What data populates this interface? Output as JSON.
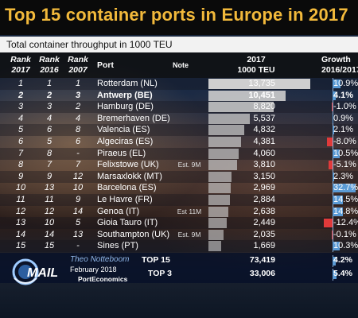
{
  "title": "Top 15 container ports in Europe in 2017",
  "subtitle": "Total container throughput in 1000 TEU",
  "headers": {
    "rank2017": [
      "Rank",
      "2017"
    ],
    "rank2016": [
      "Rank",
      "2016"
    ],
    "rank2007": [
      "Rank",
      "2007"
    ],
    "port": "Port",
    "note": "Note",
    "teu": [
      "2017",
      "1000 TEU"
    ],
    "growth": [
      "Growth",
      "2016/2017"
    ]
  },
  "colors": {
    "title": "#f2b93b",
    "growth_positive": "#5b9bd5",
    "growth_negative": "#e03a3a",
    "value_bar": "#cfcfcf"
  },
  "chart_data": {
    "type": "table",
    "title": "Top 15 container ports in Europe in 2017",
    "subtitle": "Total container throughput in 1000 TEU",
    "rows": [
      {
        "rank2017": "1",
        "rank2016": "1",
        "rank2007": "1",
        "port": "Rotterdam (NL)",
        "note": "",
        "teu": 13735,
        "teu_label": "13,735",
        "growth": 10.9,
        "growth_label": "10.9%",
        "bold": false
      },
      {
        "rank2017": "2",
        "rank2016": "2",
        "rank2007": "3",
        "port": "Antwerp (BE)",
        "note": "",
        "teu": 10451,
        "teu_label": "10,451",
        "growth": 4.1,
        "growth_label": "4.1%",
        "bold": true
      },
      {
        "rank2017": "3",
        "rank2016": "3",
        "rank2007": "2",
        "port": "Hamburg (DE)",
        "note": "",
        "teu": 8820,
        "teu_label": "8,820",
        "growth": -1.0,
        "growth_label": "-1.0%",
        "bold": false
      },
      {
        "rank2017": "4",
        "rank2016": "4",
        "rank2007": "4",
        "port": "Bremerhaven (DE)",
        "note": "",
        "teu": 5537,
        "teu_label": "5,537",
        "growth": 0.9,
        "growth_label": "0.9%",
        "bold": false
      },
      {
        "rank2017": "5",
        "rank2016": "6",
        "rank2007": "8",
        "port": "Valencia (ES)",
        "note": "",
        "teu": 4832,
        "teu_label": "4,832",
        "growth": 2.1,
        "growth_label": "2.1%",
        "bold": false
      },
      {
        "rank2017": "6",
        "rank2016": "5",
        "rank2007": "6",
        "port": "Algeciras (ES)",
        "note": "",
        "teu": 4381,
        "teu_label": "4,381",
        "growth": -8.0,
        "growth_label": "-8.0%",
        "bold": false
      },
      {
        "rank2017": "7",
        "rank2016": "8",
        "rank2007": "-",
        "port": "Piraeus (EL)",
        "note": "",
        "teu": 4060,
        "teu_label": "4,060",
        "growth": 10.5,
        "growth_label": "10.5%",
        "bold": false
      },
      {
        "rank2017": "8",
        "rank2016": "7",
        "rank2007": "7",
        "port": "Felixstowe (UK)",
        "note": "Est. 9M",
        "teu": 3810,
        "teu_label": "3,810",
        "growth": -5.1,
        "growth_label": "-5.1%",
        "bold": false
      },
      {
        "rank2017": "9",
        "rank2016": "9",
        "rank2007": "12",
        "port": "Marsaxlokk (MT)",
        "note": "",
        "teu": 3150,
        "teu_label": "3,150",
        "growth": 2.3,
        "growth_label": "2.3%",
        "bold": false
      },
      {
        "rank2017": "10",
        "rank2016": "13",
        "rank2007": "10",
        "port": "Barcelona (ES)",
        "note": "",
        "teu": 2969,
        "teu_label": "2,969",
        "growth": 32.7,
        "growth_label": "32.7%",
        "bold": false
      },
      {
        "rank2017": "11",
        "rank2016": "11",
        "rank2007": "9",
        "port": "Le Havre (FR)",
        "note": "",
        "teu": 2884,
        "teu_label": "2,884",
        "growth": 14.5,
        "growth_label": "14.5%",
        "bold": false
      },
      {
        "rank2017": "12",
        "rank2016": "12",
        "rank2007": "14",
        "port": "Genoa (IT)",
        "note": "Est 11M",
        "teu": 2638,
        "teu_label": "2,638",
        "growth": 14.8,
        "growth_label": "14.8%",
        "bold": false
      },
      {
        "rank2017": "13",
        "rank2016": "10",
        "rank2007": "5",
        "port": "Gioia Tauro (IT)",
        "note": "",
        "teu": 2449,
        "teu_label": "2,449",
        "growth": -12.4,
        "growth_label": "-12.4%",
        "bold": false
      },
      {
        "rank2017": "14",
        "rank2016": "14",
        "rank2007": "13",
        "port": "Southampton (UK)",
        "note": "Est. 9M",
        "teu": 2035,
        "teu_label": "2,035",
        "growth": -0.1,
        "growth_label": "-0.1%",
        "bold": false
      },
      {
        "rank2017": "15",
        "rank2016": "15",
        "rank2007": "-",
        "port": "Sines (PT)",
        "note": "",
        "teu": 1669,
        "teu_label": "1,669",
        "growth": 10.3,
        "growth_label": "10.3%",
        "bold": false
      }
    ],
    "totals": [
      {
        "label": "TOP 15",
        "teu_label": "73,419",
        "growth": 4.2,
        "growth_label": "4.2%"
      },
      {
        "label": "TOP 3",
        "teu_label": "33,006",
        "growth": 5.4,
        "growth_label": "5.4%"
      }
    ]
  },
  "footer": {
    "author": "Theo Notteboom",
    "date": "February 2018",
    "org": "PortEconomics",
    "logo_text": "C MAIL"
  }
}
